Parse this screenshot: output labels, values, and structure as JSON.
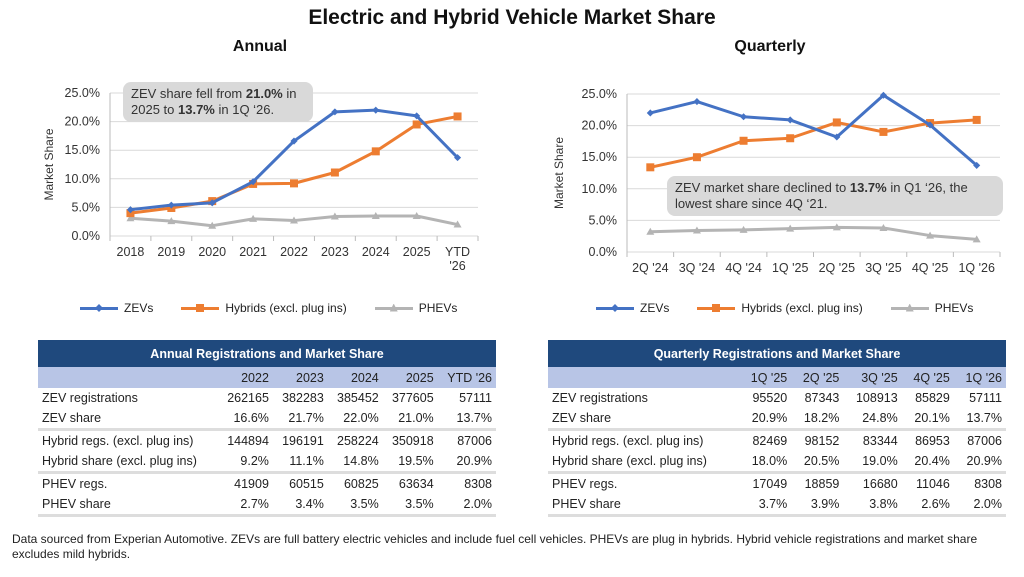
{
  "title": "Electric and Hybrid Vehicle Market Share",
  "colors": {
    "zev": "#4472c4",
    "hybrid": "#ed7d31",
    "phev": "#b4b4b4",
    "table_header": "#1f497d",
    "table_subheader": "#b8c5e6"
  },
  "chart_data": [
    {
      "type": "line",
      "title": "Annual",
      "ylabel": "Market Share",
      "ylim": [
        0,
        25
      ],
      "yticks": [
        "0.0%",
        "5.0%",
        "10.0%",
        "15.0%",
        "20.0%",
        "25.0%"
      ],
      "grid": true,
      "legend": "bottom",
      "categories": [
        "2018",
        "2019",
        "2020",
        "2021",
        "2022",
        "2023",
        "2024",
        "2025",
        "YTD '26"
      ],
      "series": [
        {
          "name": "ZEVs",
          "values": [
            4.6,
            5.4,
            5.8,
            9.5,
            16.6,
            21.7,
            22.0,
            21.0,
            13.7
          ]
        },
        {
          "name": "Hybrids (excl. plug ins)",
          "values": [
            4.0,
            4.9,
            6.1,
            9.1,
            9.2,
            11.1,
            14.8,
            19.5,
            20.9
          ]
        },
        {
          "name": "PHEVs",
          "values": [
            3.1,
            2.6,
            1.8,
            3.0,
            2.7,
            3.4,
            3.5,
            3.5,
            2.0
          ]
        }
      ],
      "annotation": {
        "pre1": "ZEV share fell from ",
        "b1": "21.0%",
        "mid": " in 2025 to ",
        "b2": "13.7%",
        "post": " in 1Q ‘26."
      }
    },
    {
      "type": "line",
      "title": "Quarterly",
      "ylabel": "Market Share",
      "ylim": [
        0,
        25
      ],
      "yticks": [
        "0.0%",
        "5.0%",
        "10.0%",
        "15.0%",
        "20.0%",
        "25.0%"
      ],
      "grid": true,
      "legend": "bottom",
      "categories": [
        "2Q '24",
        "3Q '24",
        "4Q '24",
        "1Q '25",
        "2Q '25",
        "3Q '25",
        "4Q '25",
        "1Q '26"
      ],
      "series": [
        {
          "name": "ZEVs",
          "values": [
            22.0,
            23.8,
            21.4,
            20.9,
            18.2,
            24.8,
            20.1,
            13.7
          ]
        },
        {
          "name": "Hybrids (excl. plug ins)",
          "values": [
            13.4,
            15.0,
            17.6,
            18.0,
            20.5,
            19.0,
            20.4,
            20.9
          ]
        },
        {
          "name": "PHEVs",
          "values": [
            3.2,
            3.4,
            3.5,
            3.7,
            3.9,
            3.8,
            2.6,
            2.0
          ]
        }
      ],
      "annotation": {
        "pre1": "ZEV market share declined to ",
        "b1": "13.7%",
        "mid": " in Q1 ‘26, the lowest share since 4Q ‘21.",
        "b2": "",
        "post": ""
      }
    }
  ],
  "tables": [
    {
      "title": "Annual Registrations and Market Share",
      "columns": [
        "",
        "2022",
        "2023",
        "2024",
        "2025",
        "YTD '26"
      ],
      "rows": [
        [
          "ZEV registrations",
          "262165",
          "382283",
          "385452",
          "377605",
          "57111"
        ],
        [
          "ZEV share",
          "16.6%",
          "21.7%",
          "22.0%",
          "21.0%",
          "13.7%"
        ],
        [
          "Hybrid regs. (excl. plug ins)",
          "144894",
          "196191",
          "258224",
          "350918",
          "87006"
        ],
        [
          "Hybrid share (excl. plug ins)",
          "9.2%",
          "11.1%",
          "14.8%",
          "19.5%",
          "20.9%"
        ],
        [
          "PHEV regs.",
          "41909",
          "60515",
          "60825",
          "63634",
          "8308"
        ],
        [
          "PHEV share",
          "2.7%",
          "3.4%",
          "3.5%",
          "3.5%",
          "2.0%"
        ]
      ]
    },
    {
      "title": "Quarterly Registrations and Market Share",
      "columns": [
        "",
        "1Q '25",
        "2Q '25",
        "3Q '25",
        "4Q '25",
        "1Q '26"
      ],
      "rows": [
        [
          "ZEV registrations",
          "95520",
          "87343",
          "108913",
          "85829",
          "57111"
        ],
        [
          "ZEV share",
          "20.9%",
          "18.2%",
          "24.8%",
          "20.1%",
          "13.7%"
        ],
        [
          "Hybrid regs. (excl. plug ins)",
          "82469",
          "98152",
          "83344",
          "86953",
          "87006"
        ],
        [
          "Hybrid share (excl. plug ins)",
          "18.0%",
          "20.5%",
          "19.0%",
          "20.4%",
          "20.9%"
        ],
        [
          "PHEV regs.",
          "17049",
          "18859",
          "16680",
          "11046",
          "8308"
        ],
        [
          "PHEV share",
          "3.7%",
          "3.9%",
          "3.8%",
          "2.6%",
          "2.0%"
        ]
      ]
    }
  ],
  "footer": "Data sourced from Experian Automotive. ZEVs are full battery electric vehicles and include fuel cell vehicles. PHEVs are plug in hybrids. Hybrid vehicle registrations and market share excludes mild hybrids."
}
